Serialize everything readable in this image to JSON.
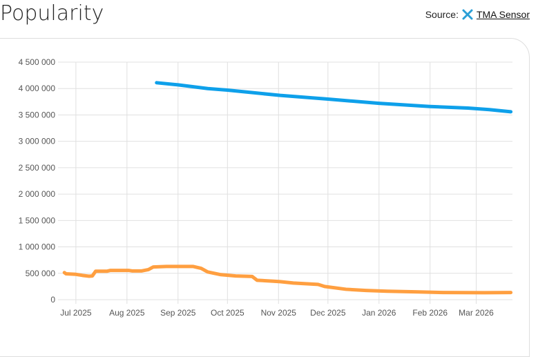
{
  "header": {
    "title": "Popularity",
    "source_label": "Source:",
    "source_link": "TMA Sensor"
  },
  "colors": {
    "series_blue": "#0ea0ea",
    "series_orange": "#ff9f40"
  },
  "chart_data": {
    "type": "line",
    "title": "Popularity",
    "x_unit": "days since 2025-07-01",
    "xlim": [
      -7.5,
      265
    ],
    "ylim": [
      0,
      4500000
    ],
    "grid": true,
    "y_ticks": [
      0,
      500000,
      1000000,
      1500000,
      2000000,
      2500000,
      3000000,
      3500000,
      4000000,
      4500000
    ],
    "y_tick_labels": [
      "0",
      "500 000",
      "1 000 000",
      "1 500 000",
      "2 000 000",
      "2 500 000",
      "3 000 000",
      "3 500 000",
      "4 000 000",
      "4 500 000"
    ],
    "x_ticks": [
      0,
      31,
      62,
      92,
      123,
      153,
      184,
      215,
      243
    ],
    "x_tick_labels": [
      "Jul 2025",
      "Aug 2025",
      "Sep 2025",
      "Oct 2025",
      "Nov 2025",
      "Dec 2025",
      "Jan 2026",
      "Feb 2026",
      "Mar 2026"
    ],
    "series": [
      {
        "name": "blue",
        "color": "#0ea0ea",
        "points": [
          [
            49,
            4110000
          ],
          [
            62,
            4070000
          ],
          [
            80,
            4000000
          ],
          [
            92,
            3970000
          ],
          [
            124,
            3870000
          ],
          [
            153,
            3800000
          ],
          [
            184,
            3720000
          ],
          [
            215,
            3660000
          ],
          [
            238,
            3630000
          ],
          [
            251,
            3600000
          ],
          [
            264,
            3560000
          ]
        ]
      },
      {
        "name": "orange",
        "color": "#ff9f40",
        "points": [
          [
            -7,
            513000
          ],
          [
            -6,
            490000
          ],
          [
            0,
            480000
          ],
          [
            4,
            460000
          ],
          [
            8,
            445000
          ],
          [
            10,
            450000
          ],
          [
            12,
            540000
          ],
          [
            19,
            540000
          ],
          [
            21,
            555000
          ],
          [
            32,
            555000
          ],
          [
            34,
            545000
          ],
          [
            40,
            545000
          ],
          [
            44,
            570000
          ],
          [
            47,
            620000
          ],
          [
            55,
            630000
          ],
          [
            62,
            630000
          ],
          [
            71,
            630000
          ],
          [
            76,
            595000
          ],
          [
            80,
            526000
          ],
          [
            84,
            500000
          ],
          [
            88,
            474000
          ],
          [
            97,
            450000
          ],
          [
            107,
            440000
          ],
          [
            110,
            368000
          ],
          [
            120,
            350000
          ],
          [
            124,
            342000
          ],
          [
            132,
            316000
          ],
          [
            147,
            290000
          ],
          [
            151,
            250000
          ],
          [
            164,
            197000
          ],
          [
            176,
            175000
          ],
          [
            189,
            160000
          ],
          [
            206,
            148000
          ],
          [
            223,
            135000
          ],
          [
            248,
            132000
          ],
          [
            264,
            135000
          ]
        ]
      }
    ]
  }
}
